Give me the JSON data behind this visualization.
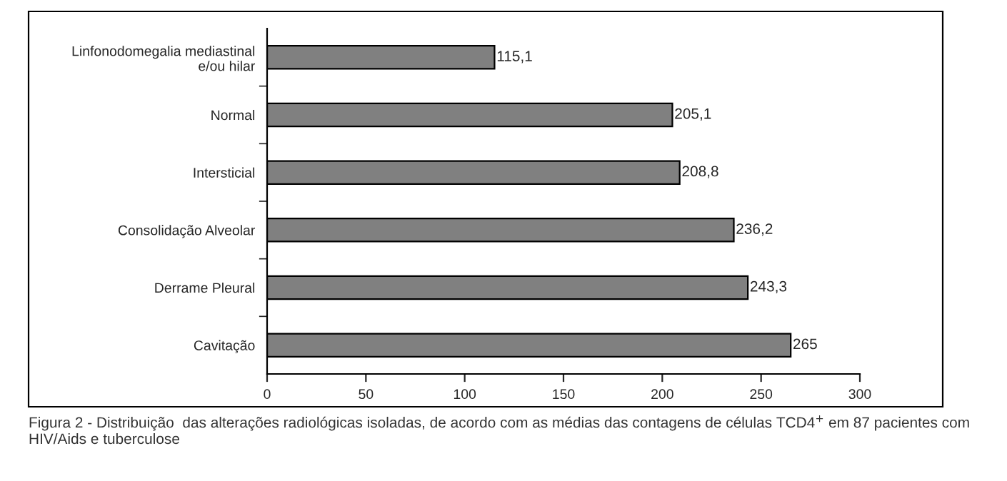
{
  "chart_data": {
    "type": "bar",
    "orientation": "horizontal",
    "categories": [
      "Linfonodomegalia mediastinal\ne/ou hilar",
      "Normal",
      "Intersticial",
      "Consolidação Alveolar",
      "Derrame Pleural",
      "Cavitação"
    ],
    "values": [
      115.1,
      205.1,
      208.8,
      236.2,
      243.3,
      265
    ],
    "value_labels": [
      "115,1",
      "205,1",
      "208,8",
      "236,2",
      "243,3",
      "265"
    ],
    "color": "#808080",
    "xlim": [
      0,
      300
    ],
    "xticks": [
      0,
      50,
      100,
      150,
      200,
      250,
      300
    ],
    "grid": false,
    "legend": false,
    "annotations": [
      "Figura 2 - Distribuição  das alterações radiológicas isoladas, de acordo com as médias das contagens de células TCD4$^{+}$ em 87 pacientes com HIV/Aids e tuberculose"
    ]
  }
}
